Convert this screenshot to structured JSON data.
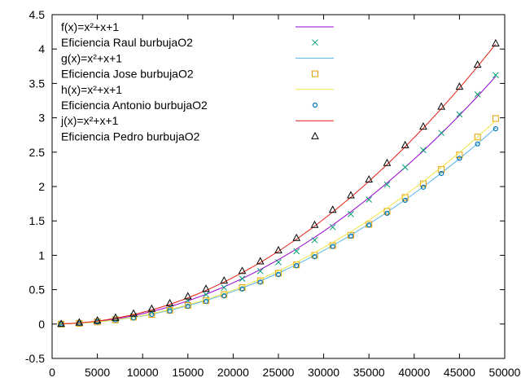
{
  "chart_data": {
    "type": "line",
    "title": "",
    "xlabel": "",
    "ylabel": "",
    "xlim": [
      0,
      50000
    ],
    "ylim": [
      -0.5,
      4.5
    ],
    "xticks": [
      0,
      5000,
      10000,
      15000,
      20000,
      25000,
      30000,
      35000,
      40000,
      45000,
      50000
    ],
    "yticks": [
      -0.5,
      0,
      0.5,
      1,
      1.5,
      2,
      2.5,
      3,
      3.5,
      4,
      4.5
    ],
    "grid": false,
    "legend_position": "top-left",
    "x": [
      1000,
      3000,
      5000,
      7000,
      9000,
      11000,
      13000,
      15000,
      17000,
      19000,
      21000,
      23000,
      25000,
      27000,
      29000,
      31000,
      33000,
      35000,
      37000,
      39000,
      41000,
      43000,
      45000,
      47000,
      49000
    ],
    "series": [
      {
        "name": "f(x)=x²+x+1",
        "kind": "line",
        "color": "#9400d3",
        "values": [
          0.002,
          0.014,
          0.038,
          0.073,
          0.121,
          0.181,
          0.252,
          0.336,
          0.432,
          0.54,
          0.66,
          0.792,
          0.936,
          1.092,
          1.26,
          1.44,
          1.632,
          1.836,
          2.052,
          2.28,
          2.52,
          2.772,
          3.036,
          3.312,
          3.6
        ]
      },
      {
        "name": "Eficiencia Raul burbujaO2",
        "kind": "points",
        "marker": "x",
        "color": "#009e73",
        "values": [
          0.0,
          0.015,
          0.04,
          0.07,
          0.12,
          0.18,
          0.25,
          0.34,
          0.43,
          0.53,
          0.66,
          0.77,
          0.9,
          1.06,
          1.22,
          1.41,
          1.6,
          1.81,
          2.03,
          2.28,
          2.53,
          2.78,
          3.05,
          3.34,
          3.62
        ]
      },
      {
        "name": "g(x)=x²+x+1",
        "kind": "line",
        "color": "#56b4e9",
        "values": [
          0.001,
          0.011,
          0.03,
          0.058,
          0.096,
          0.143,
          0.2,
          0.266,
          0.342,
          0.428,
          0.523,
          0.627,
          0.741,
          0.865,
          0.998,
          1.141,
          1.293,
          1.455,
          1.626,
          1.806,
          1.996,
          2.196,
          2.405,
          2.623,
          2.851
        ]
      },
      {
        "name": "Eficiencia Jose burbujaO2",
        "kind": "points",
        "marker": "square",
        "color": "#e69f00",
        "values": [
          0.0,
          0.01,
          0.03,
          0.06,
          0.1,
          0.14,
          0.2,
          0.27,
          0.34,
          0.43,
          0.53,
          0.63,
          0.74,
          0.86,
          1.0,
          1.14,
          1.29,
          1.45,
          1.64,
          1.84,
          2.04,
          2.25,
          2.46,
          2.72,
          2.99
        ]
      },
      {
        "name": "h(x)=x²+x+1",
        "kind": "line",
        "color": "#f0e442",
        "values": [
          0.001,
          0.011,
          0.031,
          0.061,
          0.1,
          0.15,
          0.209,
          0.278,
          0.357,
          0.446,
          0.545,
          0.654,
          0.772,
          0.9,
          1.038,
          1.186,
          1.344,
          1.511,
          1.689,
          1.876,
          2.072,
          2.279,
          2.495,
          2.721,
          2.957
        ]
      },
      {
        "name": "Eficiencia Antonio burbujaO2",
        "kind": "points",
        "marker": "circle",
        "color": "#0072b2",
        "values": [
          0.0,
          0.01,
          0.03,
          0.06,
          0.09,
          0.14,
          0.19,
          0.26,
          0.33,
          0.41,
          0.51,
          0.61,
          0.72,
          0.85,
          0.98,
          1.13,
          1.28,
          1.44,
          1.61,
          1.8,
          1.99,
          2.19,
          2.41,
          2.62,
          2.84
        ]
      },
      {
        "name": "j(x)=x²+x+1",
        "kind": "line",
        "color": "#e51e10",
        "values": [
          0.002,
          0.015,
          0.042,
          0.083,
          0.137,
          0.204,
          0.285,
          0.38,
          0.488,
          0.61,
          0.746,
          0.895,
          1.058,
          1.234,
          1.424,
          1.628,
          1.845,
          2.076,
          2.32,
          2.578,
          2.849,
          3.134,
          3.433,
          3.745,
          4.071
        ]
      },
      {
        "name": "Eficiencia Pedro burbujaO2",
        "kind": "points",
        "marker": "triangle",
        "color": "#000000",
        "values": [
          0.0,
          0.02,
          0.05,
          0.09,
          0.15,
          0.22,
          0.3,
          0.4,
          0.51,
          0.63,
          0.77,
          0.91,
          1.07,
          1.25,
          1.44,
          1.66,
          1.87,
          2.1,
          2.34,
          2.6,
          2.87,
          3.16,
          3.45,
          3.77,
          4.08
        ]
      }
    ]
  }
}
